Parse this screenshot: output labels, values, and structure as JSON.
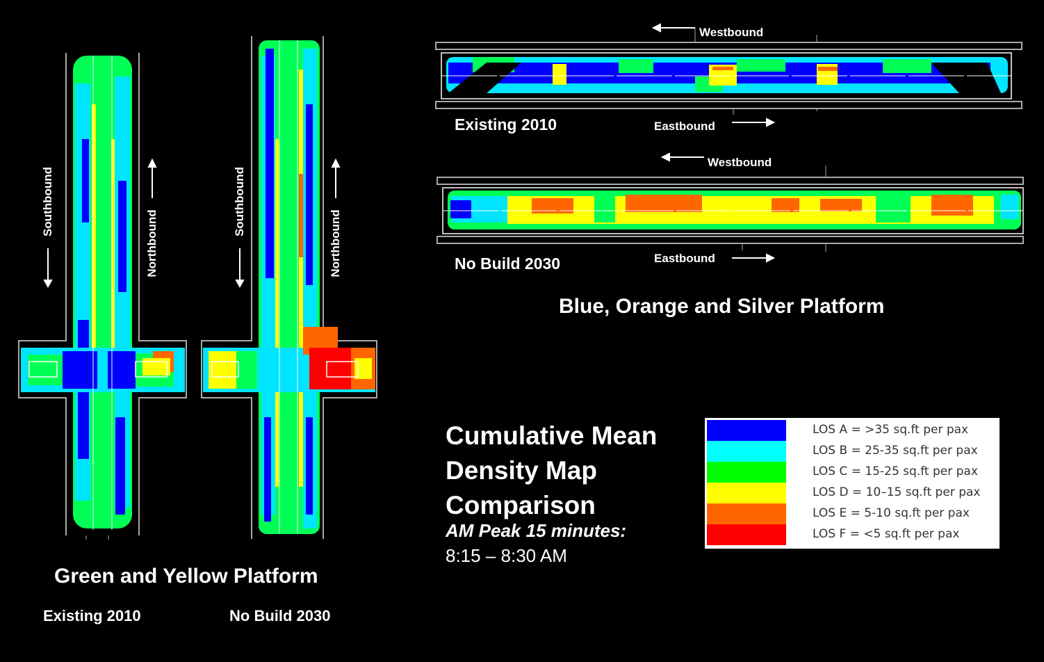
{
  "vertical_plans": {
    "title": "Green and Yellow Platform",
    "existing_label": "Existing 2010",
    "nobuild_label": "No Build 2030",
    "existing": {
      "southbound": "Southbound",
      "northbound": "Northbound"
    },
    "nobuild": {
      "southbound": "Southbound",
      "northbound": "Northbound"
    }
  },
  "horizontal_plans": {
    "title": "Blue, Orange and Silver Platform",
    "existing": {
      "label": "Existing 2010",
      "westbound": "Westbound",
      "eastbound": "Eastbound"
    },
    "nobuild": {
      "label": "No Build 2030",
      "westbound": "Westbound",
      "eastbound": "Eastbound"
    }
  },
  "heading": {
    "line1": "Cumulative Mean",
    "line2": "Density Map",
    "line3": "Comparison",
    "subtitle": "AM Peak 15 minutes:",
    "time": "8:15 – 8:30 AM"
  },
  "legend": [
    {
      "label": "LOS A = >35 sq.ft per pax",
      "color": "#0000ff"
    },
    {
      "label": "LOS B = 25-35 sq.ft per pax",
      "color": "#00ffff"
    },
    {
      "label": "LOS C = 15-25 sq.ft per pax",
      "color": "#00ff00"
    },
    {
      "label": "LOS D = 10–15 sq.ft per pax",
      "color": "#ffff00"
    },
    {
      "label": "LOS E = 5-10 sq.ft per pax",
      "color": "#ff6600"
    },
    {
      "label": "LOS F = <5 sq.ft per pax",
      "color": "#ff0000"
    }
  ]
}
